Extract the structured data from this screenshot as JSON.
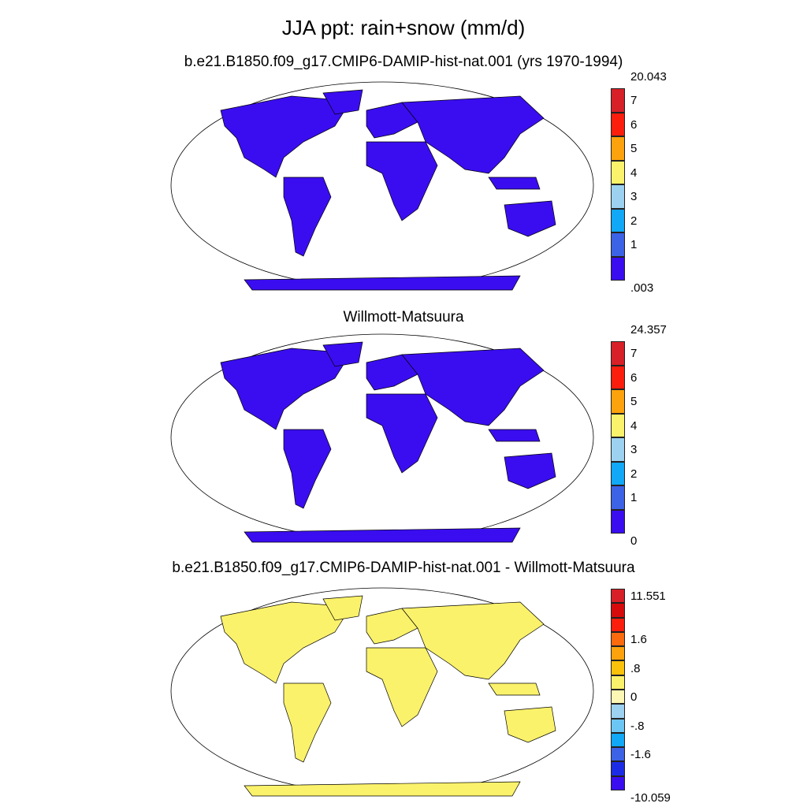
{
  "title": "JJA ppt: rain+snow (mm/d)",
  "panels": [
    {
      "title": "b.e21.B1850.f09_g17.CMIP6-DAMIP-hist-nat.001 (yrs 1970-1994)",
      "colorbar": {
        "colors": [
          "#3a0df0",
          "#3c62e6",
          "#10a8f7",
          "#9dd1f0",
          "#fbf26b",
          "#fba20c",
          "#fb1e0c",
          "#d72027"
        ],
        "labels": [
          ".003",
          "1",
          "2",
          "3",
          "4",
          "5",
          "6",
          "7",
          "20.043"
        ]
      },
      "map_fill": "#3a0df0"
    },
    {
      "title": "Willmott-Matsuura",
      "colorbar": {
        "colors": [
          "#3a0df0",
          "#3c62e6",
          "#10a8f7",
          "#9dd1f0",
          "#fbf26b",
          "#fba20c",
          "#fb1e0c",
          "#d72027"
        ],
        "labels": [
          "0",
          "1",
          "2",
          "3",
          "4",
          "5",
          "6",
          "7",
          "24.357"
        ]
      },
      "map_fill": "#3a0df0"
    },
    {
      "title": "b.e21.B1850.f09_g17.CMIP6-DAMIP-hist-nat.001 - Willmott-Matsuura",
      "colorbar": {
        "colors": [
          "#3a0df0",
          "#1c2ce6",
          "#3c62e6",
          "#10a8f7",
          "#6cc6f4",
          "#9dd1f0",
          "#fdf7b5",
          "#fbf26b",
          "#fbc20c",
          "#fba20c",
          "#fb6a0c",
          "#fb1e0c",
          "#d70b0b",
          "#d72027"
        ],
        "labels": [
          "-10.059",
          "",
          "-1.6",
          "",
          "-.8",
          "",
          "0",
          "",
          ".8",
          "",
          "1.6",
          "",
          "",
          "11.551"
        ]
      },
      "map_fill": "#fbf26b"
    }
  ]
}
